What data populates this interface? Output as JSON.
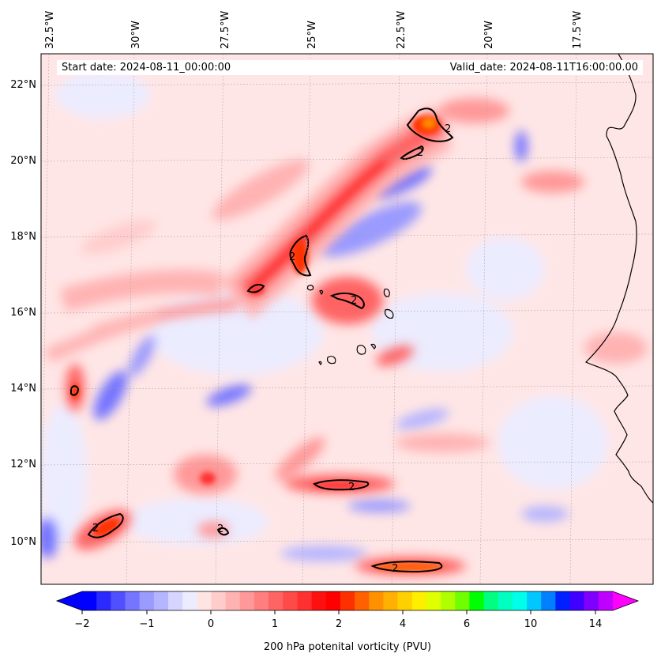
{
  "map": {
    "start_label": "Start date: 2024-08-11_00:00:00",
    "valid_label": "Valid_date: 2024-08-11T16:00:00.00",
    "lon_labels": [
      "32.5°W",
      "30°W",
      "27.5°W",
      "25°W",
      "22.5°W",
      "20°W",
      "17.5°W"
    ],
    "lat_labels": [
      "22°N",
      "20°N",
      "18°N",
      "16°N",
      "14°N",
      "12°N",
      "10°N"
    ],
    "contour_label": "2"
  },
  "colorbar": {
    "title": "200 hPa potenital vorticity (PVU)",
    "tick_labels": [
      "−2",
      "−1",
      "0",
      "1",
      "2",
      "4",
      "6",
      "10",
      "14"
    ],
    "colors": [
      "#0000ff",
      "#2a2aff",
      "#5050ff",
      "#7575ff",
      "#9a9aff",
      "#b5b5ff",
      "#d5d5ff",
      "#ececff",
      "#ffe4e4",
      "#ffcccc",
      "#ffb2b2",
      "#ff9898",
      "#ff7e7e",
      "#ff6464",
      "#ff4a4a",
      "#ff3030",
      "#ff1010",
      "#ff0000",
      "#ff3000",
      "#ff6000",
      "#ff9000",
      "#ffb000",
      "#ffd000",
      "#ffee00",
      "#e0ff00",
      "#b0ff00",
      "#70ff00",
      "#00ff00",
      "#00ff80",
      "#00ffc0",
      "#00ffe8",
      "#00c8ff",
      "#0080ff",
      "#0020ff",
      "#4000ff",
      "#8000ff",
      "#c000ff"
    ],
    "extend_low_color": "#0000ff",
    "extend_high_color": "#ff00ff"
  }
}
